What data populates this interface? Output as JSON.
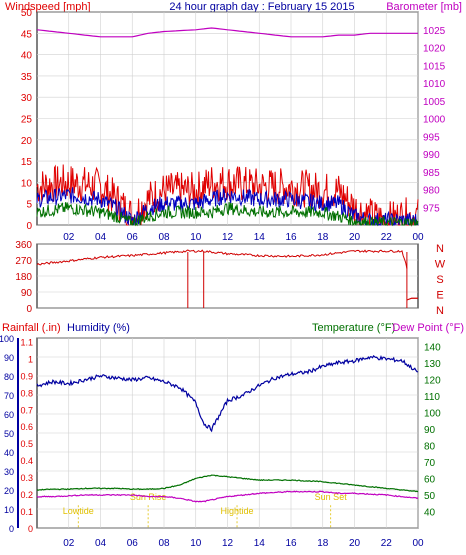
{
  "header": {
    "left_title": "Windspeed [mph]",
    "center_title": "24 hour graph day : February 15 2015",
    "right_title": "Barometer [mb]"
  },
  "colors": {
    "windspeed": "#e00000",
    "avg_wind": "#0000c0",
    "wind_low": "#007000",
    "barometer": "#c000c0",
    "direction": "#d00000",
    "rain_axis": "#e00000",
    "humidity": "#0000a0",
    "temperature": "#007000",
    "dewpoint": "#c000c0",
    "astro": "#e0c000",
    "grid": "#d0d0d0"
  },
  "chart_data": [
    {
      "type": "line",
      "name": "wind-barometer",
      "title": "24 hour graph day : February 15 2015",
      "ylabel": "Windspeed [mph]",
      "y2label": "Barometer [mb]",
      "ylim": [
        0,
        50
      ],
      "y2lim": [
        970,
        1030
      ],
      "y_ticks": [
        0,
        5,
        10,
        15,
        20,
        25,
        30,
        35,
        40,
        45,
        50
      ],
      "y2_ticks": [
        975,
        980,
        985,
        990,
        995,
        1000,
        1005,
        1010,
        1015,
        1020,
        1025
      ],
      "x_ticks": [
        "02",
        "04",
        "06",
        "08",
        "10",
        "12",
        "14",
        "16",
        "18",
        "20",
        "22",
        "00"
      ],
      "x": [
        0,
        2,
        4,
        5,
        6,
        7,
        8,
        10,
        11,
        12,
        14,
        16,
        18,
        19,
        20,
        21,
        22,
        23,
        24
      ],
      "series": [
        {
          "values": [
            9,
            10,
            9,
            6,
            2,
            6,
            8,
            8,
            10,
            10,
            9,
            9,
            8,
            8,
            4,
            2,
            1,
            2,
            2
          ],
          "color": "#e00000"
        },
        {
          "values": [
            6,
            7,
            6,
            4,
            1,
            4,
            5,
            5,
            6,
            7,
            6,
            6,
            5,
            5,
            2,
            1,
            1,
            1,
            1
          ],
          "color": "#0000c0"
        },
        {
          "values": [
            3,
            4,
            3,
            2,
            0.5,
            2,
            3,
            3,
            3,
            4,
            3,
            3,
            3,
            2,
            1,
            0.5,
            0.5,
            0.5,
            0.5
          ],
          "color": "#007000"
        },
        {
          "axis": "y2",
          "values": [
            1025,
            1024,
            1023,
            1023,
            1023,
            1024,
            1024.5,
            1025,
            1025.5,
            1025,
            1024,
            1023,
            1023,
            1023.5,
            1023.5,
            1024,
            1024,
            1024,
            1024
          ],
          "color": "#c000c0"
        }
      ]
    },
    {
      "type": "scatter",
      "name": "wind-direction",
      "ylim": [
        0,
        360
      ],
      "y_ticks": [
        0,
        90,
        180,
        270,
        360
      ],
      "compass_labels": [
        "N",
        "W",
        "S",
        "E",
        "N"
      ],
      "x": [
        0,
        2,
        4,
        6,
        8,
        9.5,
        10.5,
        12,
        14,
        16,
        18,
        20,
        22,
        23,
        24
      ],
      "values": [
        245,
        265,
        285,
        295,
        310,
        320,
        320,
        305,
        295,
        290,
        300,
        320,
        320,
        320,
        0
      ],
      "color": "#d00000"
    },
    {
      "type": "line",
      "name": "rain-humidity-temperature",
      "left_label_1": "Rainfall (.in)",
      "left_label_2": "Humidity (%)",
      "right_label_1": "Temperature (°F)",
      "right_label_2": "Dew Point (°F)",
      "rain_ticks": [
        "0",
        "0.1",
        "0.2",
        "0.3",
        "0.4",
        "0.5",
        "0.6",
        "0.7",
        "0.8",
        "0.9",
        "1",
        "1.1"
      ],
      "humidity_ticks": [
        0,
        10,
        20,
        30,
        40,
        50,
        60,
        70,
        80,
        90,
        100
      ],
      "temp_ticks": [
        40,
        50,
        60,
        70,
        80,
        90,
        100,
        110,
        120,
        130,
        140
      ],
      "ylim": [
        0,
        100
      ],
      "y2lim": [
        30,
        145
      ],
      "x_ticks": [
        "02",
        "04",
        "06",
        "08",
        "10",
        "12",
        "14",
        "16",
        "18",
        "20",
        "22",
        "00"
      ],
      "x": [
        0,
        1,
        2,
        3,
        4,
        5,
        6,
        7,
        8,
        9,
        10,
        10.5,
        11,
        12,
        13,
        14,
        15,
        16,
        17,
        18,
        19,
        20,
        21,
        22,
        23,
        24
      ],
      "humidity": [
        75,
        77,
        76,
        78,
        80,
        79,
        78,
        79,
        77,
        74,
        66,
        55,
        52,
        67,
        70,
        75,
        79,
        81,
        82,
        85,
        87,
        88,
        90,
        89,
        88,
        82
      ],
      "temperature": [
        53,
        53.5,
        53.5,
        54,
        54,
        54,
        53.5,
        53.5,
        54,
        56,
        60,
        61,
        62,
        61,
        60,
        59,
        59,
        59,
        58.5,
        58,
        57,
        56,
        55,
        54,
        53,
        52
      ],
      "dewpoint": [
        49,
        49,
        49.5,
        50,
        50,
        50,
        50,
        49,
        49,
        48,
        46,
        46,
        47,
        49,
        50,
        51,
        51.5,
        52,
        52,
        52,
        51,
        51,
        50.5,
        50,
        49,
        48
      ],
      "astro_events": [
        {
          "x": 2.6,
          "label": "Lowtide"
        },
        {
          "x": 7.0,
          "label": "Sun Rise"
        },
        {
          "x": 12.6,
          "label": "Hightide"
        },
        {
          "x": 18.5,
          "label": "Sun Set"
        }
      ]
    }
  ]
}
